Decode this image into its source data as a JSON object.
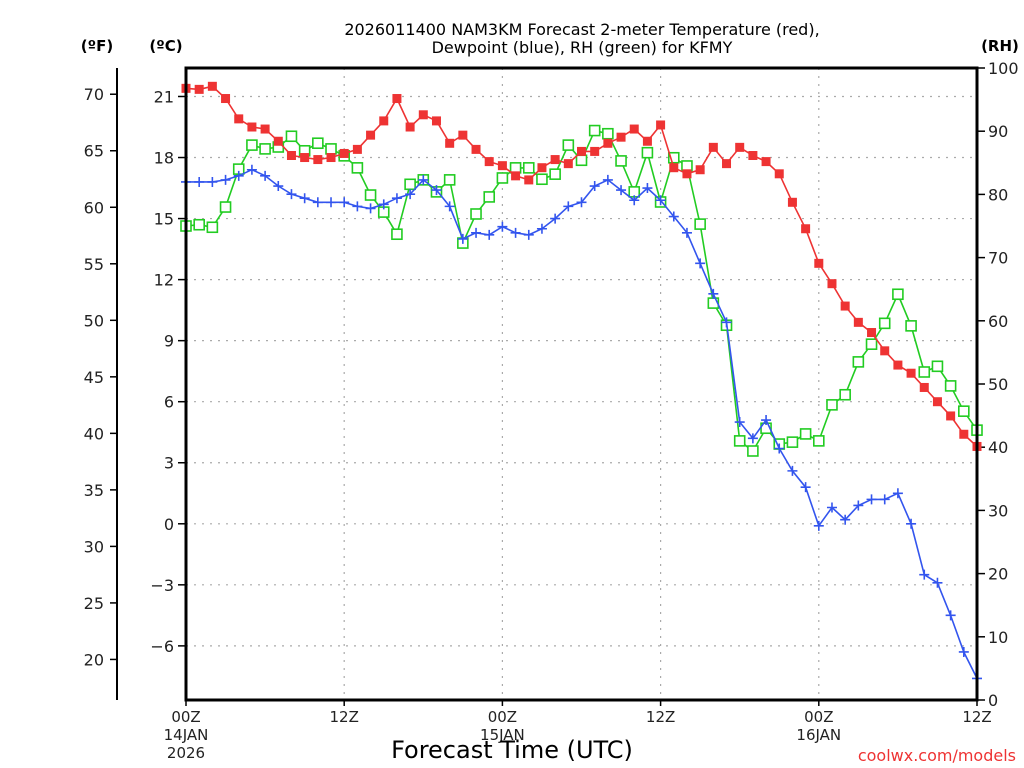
{
  "chart_data": {
    "type": "line",
    "title_line1": "2026011400 NAM3KM Forecast 2-meter Temperature (red),",
    "title_line2": "Dewpoint (blue), RH (green) for KFMY",
    "xlabel": "Forecast Time (UTC)",
    "units": {
      "fahrenheit": "(ºF)",
      "celsius": "(ºC)",
      "rh": "(RH)"
    },
    "x_hours_range": [
      0,
      60
    ],
    "x_ticks": [
      {
        "hour": 0,
        "label": "00Z",
        "date": "14JAN",
        "year": "2026"
      },
      {
        "hour": 12,
        "label": "12Z",
        "date": "",
        "year": ""
      },
      {
        "hour": 24,
        "label": "00Z",
        "date": "15JAN",
        "year": ""
      },
      {
        "hour": 36,
        "label": "12Z",
        "date": "",
        "year": ""
      },
      {
        "hour": 48,
        "label": "00Z",
        "date": "16JAN",
        "year": ""
      },
      {
        "hour": 60,
        "label": "12Z",
        "date": "",
        "year": ""
      }
    ],
    "celsius_axis": {
      "range": [
        -8.66,
        22.4
      ],
      "ticks": [
        21,
        18,
        15,
        12,
        9,
        6,
        3,
        0,
        -3,
        -6
      ],
      "tick_labels": [
        "21",
        "18",
        "15",
        "12",
        "9",
        "6",
        "3",
        "0",
        "−3",
        "−6"
      ]
    },
    "fahrenheit_axis": {
      "ticks": [
        70,
        65,
        60,
        55,
        50,
        45,
        40,
        35,
        30,
        25,
        20
      ]
    },
    "rh_axis": {
      "range": [
        0,
        100
      ],
      "ticks": [
        100,
        90,
        80,
        70,
        60,
        50,
        40,
        30,
        20,
        10,
        0
      ]
    },
    "grid": true,
    "series": [
      {
        "name": "Temperature (red)",
        "axis": "celsius",
        "color": "#ee3333",
        "marker": "filled-square",
        "values": [
          21.4,
          21.35,
          21.5,
          20.9,
          19.9,
          19.5,
          19.4,
          18.8,
          18.1,
          18.0,
          17.9,
          18.0,
          18.2,
          18.4,
          19.1,
          19.8,
          20.9,
          19.5,
          20.1,
          19.8,
          18.7,
          19.1,
          18.4,
          17.8,
          17.6,
          17.1,
          16.9,
          17.5,
          17.9,
          17.7,
          18.3,
          18.3,
          18.7,
          19.0,
          19.4,
          18.8,
          19.6,
          17.5,
          17.2,
          17.4,
          18.5,
          17.7,
          18.5,
          18.1,
          17.8,
          17.2,
          15.8,
          14.5,
          12.8,
          11.8,
          10.7,
          9.9,
          9.4,
          8.5,
          7.8,
          7.4,
          6.7,
          6.0,
          5.3,
          4.4,
          3.8
        ]
      },
      {
        "name": "Dewpoint (blue)",
        "axis": "celsius",
        "color": "#3355ee",
        "marker": "plus",
        "values": [
          16.8,
          16.8,
          16.8,
          16.9,
          17.1,
          17.4,
          17.1,
          16.6,
          16.2,
          16.0,
          15.8,
          15.8,
          15.8,
          15.6,
          15.5,
          15.7,
          16.0,
          16.2,
          16.9,
          16.4,
          15.6,
          14.0,
          14.3,
          14.2,
          14.6,
          14.3,
          14.2,
          14.5,
          15.0,
          15.6,
          15.8,
          16.6,
          16.9,
          16.4,
          15.9,
          16.5,
          15.9,
          15.1,
          14.3,
          12.8,
          11.3,
          9.9,
          5.0,
          4.2,
          5.1,
          3.7,
          2.6,
          1.8,
          -0.1,
          0.8,
          0.2,
          0.9,
          1.2,
          1.2,
          1.5,
          0.0,
          -2.5,
          -2.9,
          -4.5,
          -6.3,
          -7.6
        ]
      },
      {
        "name": "RH (green)",
        "axis": "rh",
        "color": "#22cc22",
        "marker": "open-square",
        "values": [
          75.0,
          75.2,
          74.8,
          78.0,
          84.0,
          87.8,
          87.2,
          87.5,
          89.2,
          86.9,
          88.1,
          87.2,
          86.1,
          84.2,
          79.9,
          77.2,
          73.7,
          81.6,
          82.3,
          80.4,
          82.3,
          72.3,
          76.9,
          79.6,
          82.6,
          84.2,
          84.2,
          82.4,
          83.2,
          87.8,
          85.4,
          90.1,
          89.6,
          85.3,
          80.4,
          86.6,
          78.8,
          85.8,
          84.5,
          75.3,
          62.8,
          59.3,
          41.0,
          39.4,
          43.0,
          40.5,
          40.8,
          42.1,
          41.0,
          46.7,
          48.3,
          53.5,
          56.3,
          59.6,
          64.2,
          59.2,
          51.9,
          52.8,
          49.7,
          45.7,
          42.7
        ]
      }
    ]
  },
  "branding": "coolwx.com/models"
}
